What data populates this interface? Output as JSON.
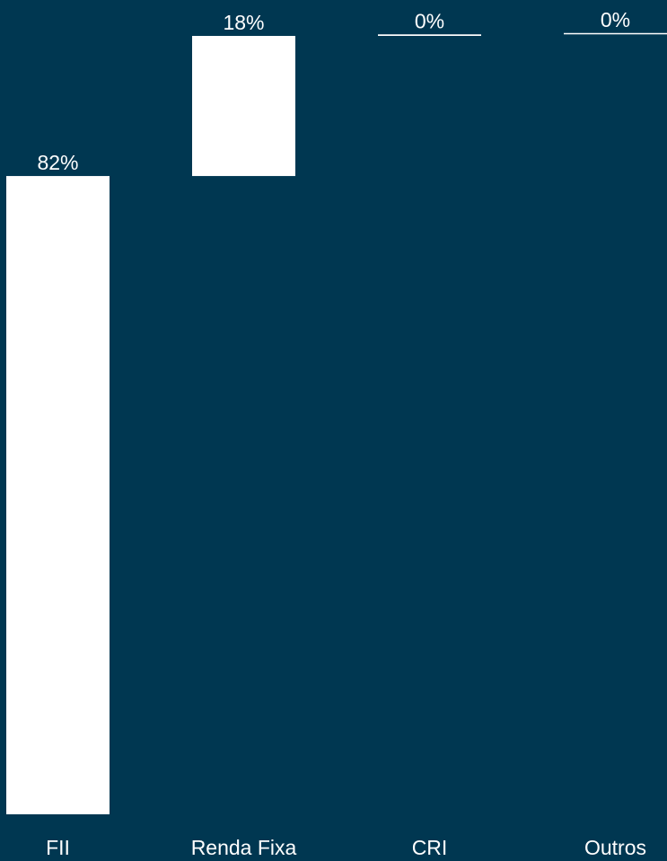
{
  "chart_data": {
    "type": "bar",
    "subtype": "waterfall",
    "categories": [
      "FII",
      "Renda Fixa",
      "CRI",
      "Outros"
    ],
    "values": [
      82,
      18,
      0.2,
      0.05
    ],
    "labels": [
      "82%",
      "18%",
      "0%",
      "0%"
    ],
    "ylim": [
      0,
      100
    ],
    "title": "",
    "xlabel": "",
    "ylabel": "",
    "grid": false,
    "legend": "none",
    "unit": "%",
    "colors": {
      "background": "#003751",
      "bar": "#ffffff",
      "text": "#ffffff"
    }
  }
}
